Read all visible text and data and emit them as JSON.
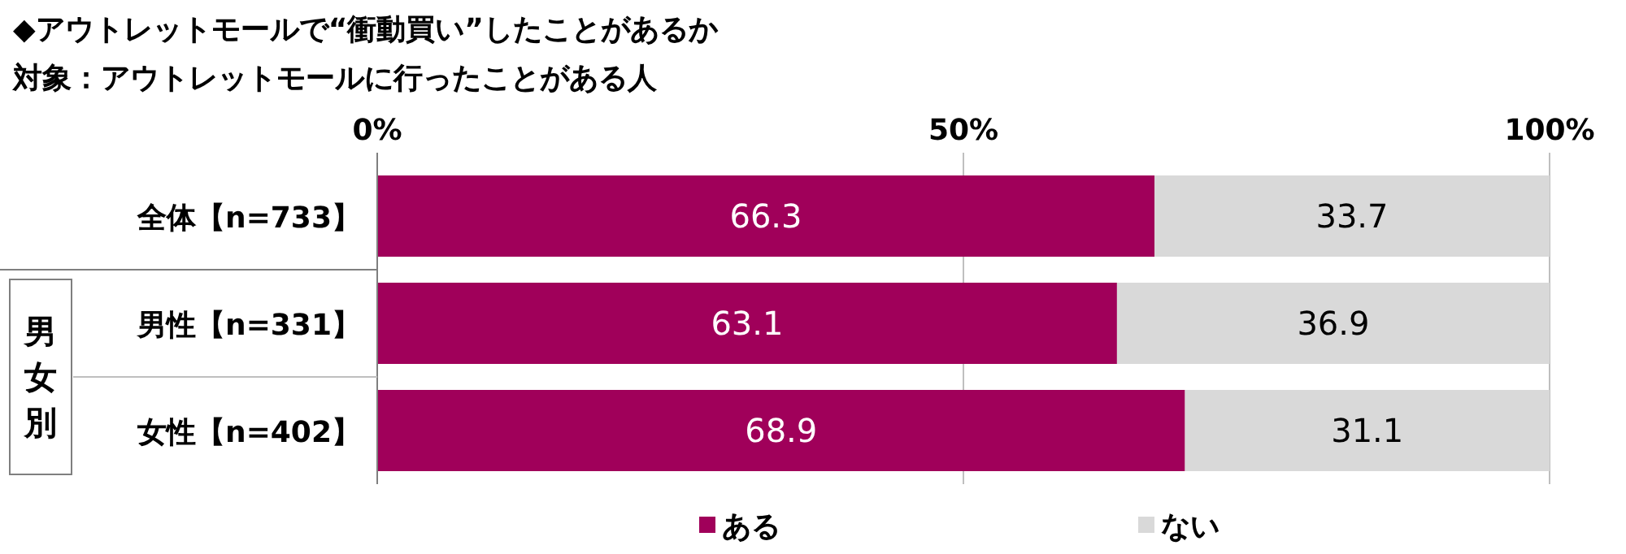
{
  "chart_data": {
    "type": "bar",
    "orientation": "horizontal",
    "stacked": true,
    "title": "◆アウトレットモールで“衝動買い”したことがあるか",
    "subtitle": "対象：アウトレットモールに行ったことがある人",
    "categories": [
      "全体【n=733】",
      "男性【n=331】",
      "女性【n=402】"
    ],
    "series": [
      {
        "name": "ある",
        "color": "#a0005a",
        "values": [
          66.3,
          63.1,
          68.9
        ]
      },
      {
        "name": "ない",
        "color": "#d9d9d9",
        "values": [
          33.7,
          36.9,
          31.1
        ]
      }
    ],
    "xlim": [
      0,
      100
    ],
    "xticks": [
      {
        "value": 0,
        "label": "0%"
      },
      {
        "value": 50,
        "label": "50%"
      },
      {
        "value": 100,
        "label": "100%"
      }
    ],
    "grid": "x",
    "legend": "bottom",
    "data_labels": true,
    "annotations": [
      "男女別"
    ]
  }
}
